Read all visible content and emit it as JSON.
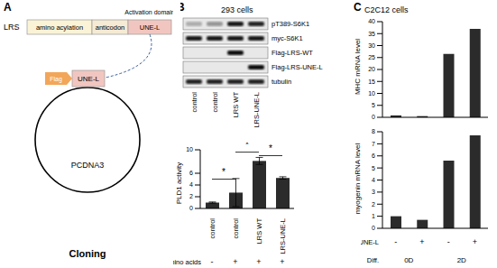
{
  "panels": {
    "A": {
      "label": "A",
      "protein": "LRS",
      "domains": [
        {
          "name": "amino acylation",
          "color": "#fbf3d6"
        },
        {
          "name": "anticodon",
          "color": "#f5ead3"
        },
        {
          "name": "UNE-L",
          "color": "#f2c6c0"
        }
      ],
      "annotation": "Activation domain",
      "tag": "Flag",
      "tag_color": "#f2a65a",
      "insert": "UNE-L",
      "vector": "PCDNA3",
      "caption": "Cloning"
    },
    "B": {
      "label": "B",
      "cell_line": "293 cells",
      "blot_rows": [
        "pT389-S6K1",
        "myc-S6K1",
        "Flag-LRS-WT",
        "Flag-LRS-UNE-L",
        "tubulin"
      ],
      "lanes": [
        "control",
        "control",
        "LRS WT",
        "LRS-UNE-L"
      ],
      "amino_acids_label": "amino acids",
      "amino_acids": [
        "-",
        "+",
        "+",
        "+"
      ]
    },
    "C": {
      "label": "C",
      "cell_line": "C2C12 cells"
    }
  },
  "chart_data": [
    {
      "type": "bar",
      "y_label": "PLD1 activity",
      "categories": [
        "control",
        "control",
        "LRS WT",
        "LRS-UNE-L"
      ],
      "category_rows": [
        {
          "label": "amino acids",
          "values": [
            "-",
            "+",
            "+",
            "+"
          ]
        }
      ],
      "values": [
        1,
        2.7,
        8.1,
        5.2
      ],
      "errors": [
        0.1,
        2.4,
        0.6,
        0.2
      ],
      "color": "#2b2b2b",
      "ylim": [
        0,
        10
      ],
      "yticks": [
        0,
        2,
        4,
        6,
        8,
        10
      ],
      "annotations": [
        {
          "from": 0,
          "to": 1,
          "y": 5,
          "label": "*"
        },
        {
          "from": 1,
          "to": 2,
          "y": 9.6,
          "label": "*"
        },
        {
          "from": 2,
          "to": 3,
          "y": 9,
          "label": "*"
        }
      ]
    },
    {
      "type": "bar",
      "y_label": "MHC mRNA level",
      "categories": [
        "-",
        "+",
        "-",
        "+"
      ],
      "values": [
        0.8,
        0.5,
        26.5,
        37
      ],
      "color": "#2b2b2b",
      "ylim": [
        0,
        40
      ],
      "yticks": [
        0,
        5,
        10,
        15,
        20,
        25,
        30,
        35,
        40
      ],
      "tick_labels": "y"
    },
    {
      "type": "bar",
      "y_label": "myogenin mRNA level",
      "categories": [
        "-",
        "+",
        "-",
        "+"
      ],
      "x_label": "UNE-L",
      "groups": {
        "label": "Diff.",
        "names": [
          "0D",
          "2D"
        ]
      },
      "values": [
        1,
        0.7,
        5.6,
        7.7
      ],
      "color": "#2b2b2b",
      "ylim": [
        0,
        8
      ],
      "yticks": [
        0,
        1,
        2,
        3,
        4,
        5,
        6,
        7,
        8
      ]
    }
  ]
}
